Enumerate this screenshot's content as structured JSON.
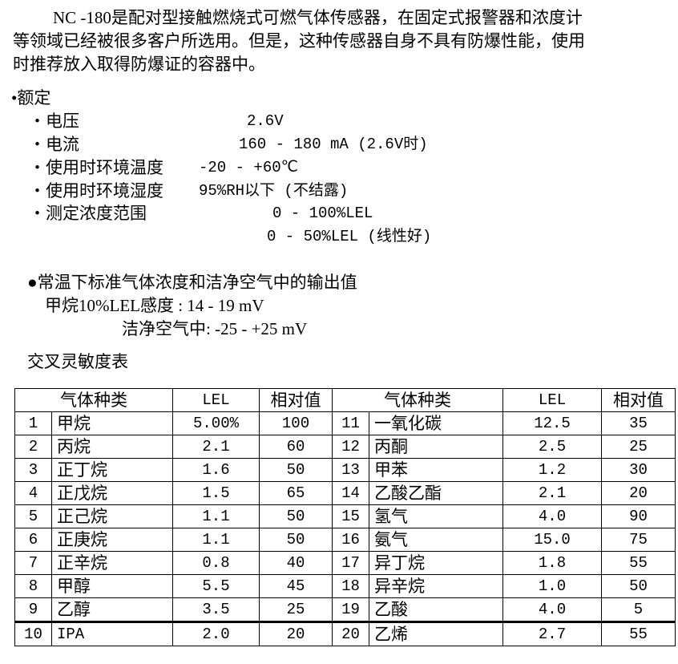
{
  "intro": {
    "lines": [
      "NC -180是配对型接触燃烧式可燃气体传感器，在固定式报警器和浓度计",
      "等领域已经被很多客户所选用。但是，这种传感器自身不具有防爆性能，使用",
      "时推荐放入取得防爆证的容器中。"
    ]
  },
  "ratings": {
    "heading": "•额定",
    "items": [
      {
        "label": "・电压",
        "value": "2.6V"
      },
      {
        "label": "・电流",
        "value": "160 - 180 mA (2.6V时)"
      },
      {
        "label": "・使用时环境温度",
        "value": "-20 - +60℃"
      },
      {
        "label": "・使用时环境湿度",
        "value": "95%RH以下 (不结露)"
      },
      {
        "label": "・测定浓度范围",
        "value": "0 - 100%LEL"
      },
      {
        "label": "",
        "value": "0 - 50%LEL (线性好)"
      }
    ]
  },
  "output": {
    "heading": "●常温下标准气体浓度和洁净空气中的输出值",
    "methane": "甲烷10%LEL感度 : 14 - 19 mV",
    "clean_air": "洁净空气中: -25 - +25 mV"
  },
  "table": {
    "title": "交叉灵敏度表",
    "headers": [
      "气体种类",
      "LEL",
      "相对值",
      "气体种类",
      "LEL",
      "相对值"
    ],
    "rows": [
      [
        "1",
        "甲烷",
        "5.00%",
        "100",
        "11",
        "一氧化碳",
        "12.5",
        "35"
      ],
      [
        "2",
        "丙烷",
        "2.1",
        "60",
        "12",
        "丙酮",
        "2.5",
        "25"
      ],
      [
        "3",
        "正丁烷",
        "1.6",
        "50",
        "13",
        "甲苯",
        "1.2",
        "30"
      ],
      [
        "4",
        "正戊烷",
        "1.5",
        "65",
        "14",
        "乙酸乙酯",
        "2.1",
        "20"
      ],
      [
        "5",
        "正己烷",
        "1.1",
        "50",
        "15",
        "氢气",
        "4.0",
        "90"
      ],
      [
        "6",
        "正庚烷",
        "1.1",
        "50",
        "16",
        "氨气",
        "15.0",
        "75"
      ],
      [
        "7",
        "正辛烷",
        "0.8",
        "40",
        "17",
        "异丁烷",
        "1.8",
        "55"
      ],
      [
        "8",
        "甲醇",
        "5.5",
        "45",
        "18",
        "异辛烷",
        "1.0",
        "50"
      ],
      [
        "9",
        "乙醇",
        "3.5",
        "25",
        "19",
        "乙酸",
        "4.0",
        "5"
      ],
      [
        "10",
        "IPA",
        "2.0",
        "20",
        "20",
        "乙烯",
        "2.7",
        "55"
      ]
    ]
  }
}
